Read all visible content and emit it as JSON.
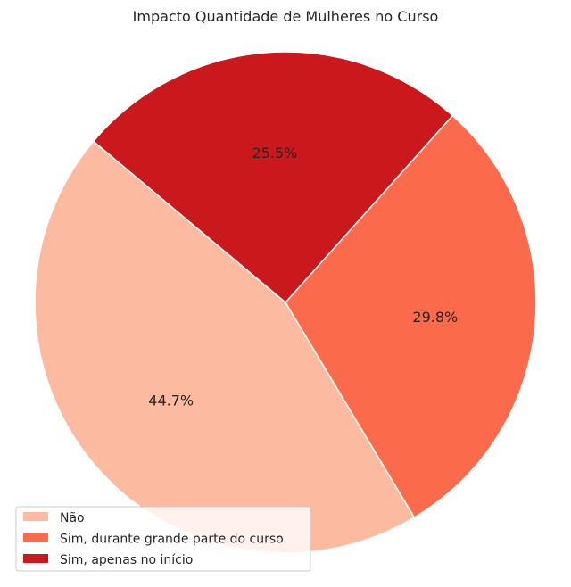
{
  "chart_data": {
    "type": "pie",
    "title": "Impacto Quantidade de Mulheres no Curso",
    "categories": [
      "Não",
      "Sim, durante grande parte do curso",
      "Sim, apenas no início"
    ],
    "values": [
      44.7,
      29.8,
      25.5
    ],
    "labels": [
      "44.7%",
      "29.8%",
      "25.5%"
    ],
    "colors": [
      "#fcbba1",
      "#fb6a4a",
      "#cb181d"
    ],
    "legend_position": "bottom-left"
  }
}
